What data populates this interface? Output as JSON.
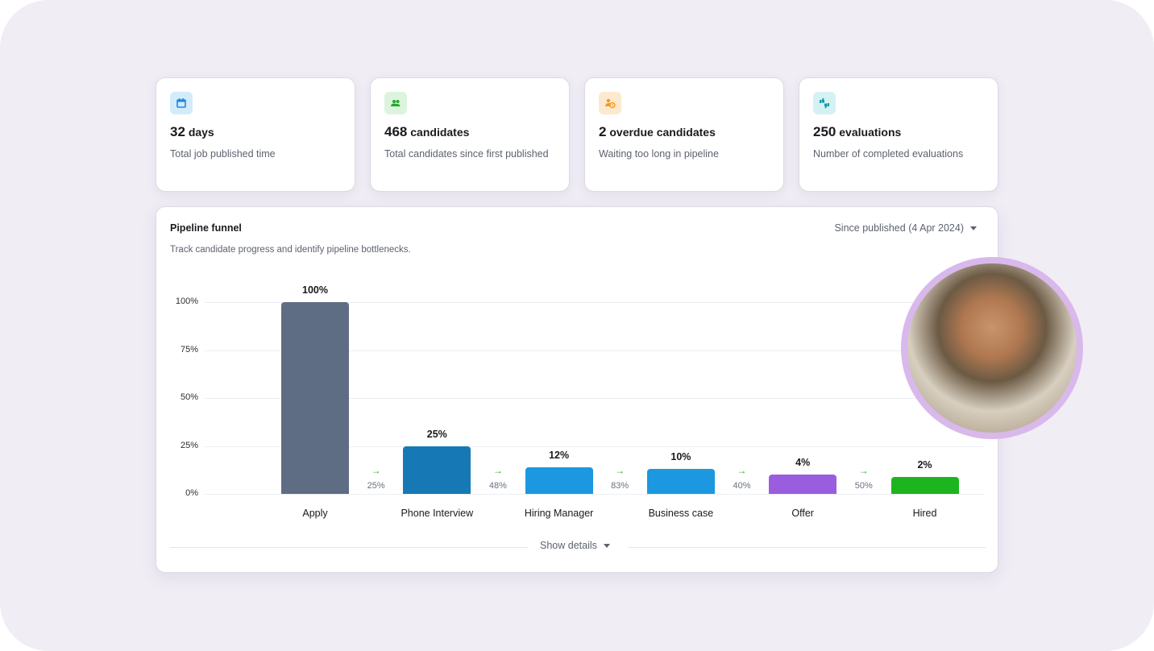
{
  "stats": [
    {
      "number": "32",
      "unit": "days",
      "description": "Total job published time",
      "icon": "calendar-icon",
      "icon_color": "#1e88e5",
      "icon_bg": "#d3ebfb"
    },
    {
      "number": "468",
      "unit": "candidates",
      "description": "Total candidates since first published",
      "icon": "people-icon",
      "icon_color": "#1fa82a",
      "icon_bg": "#dcf4dd"
    },
    {
      "number": "2",
      "unit": "overdue candidates",
      "description": "Waiting too long in pipeline",
      "icon": "user-clock-icon",
      "icon_color": "#f59a1b",
      "icon_bg": "#fde9cf"
    },
    {
      "number": "250",
      "unit": "evaluations",
      "description": "Number of completed evaluations",
      "icon": "thumbs-icon",
      "icon_color": "#0f9aa8",
      "icon_bg": "#d6f1f4"
    }
  ],
  "funnel": {
    "title": "Pipeline funnel",
    "subtitle": "Track candidate progress and identify pipeline bottlenecks.",
    "range_label": "Since published",
    "range_date": "(4 Apr 2024)",
    "show_details": "Show details"
  },
  "chart_data": {
    "type": "bar",
    "categories": [
      "Apply",
      "Phone Interview",
      "Hiring Manager",
      "Business case",
      "Offer",
      "Hired"
    ],
    "values": [
      100,
      25,
      12,
      10,
      4,
      2
    ],
    "value_labels": [
      "100%",
      "25%",
      "12%",
      "10%",
      "4%",
      "2%"
    ],
    "colors": [
      "#5f6d84",
      "#1679b5",
      "#1b98e0",
      "#1b98e0",
      "#9a5ddf",
      "#1db51f"
    ],
    "conversion_rates": [
      "25%",
      "48%",
      "83%",
      "40%",
      "50%"
    ],
    "yticks": [
      "100%",
      "75%",
      "50%",
      "25%",
      "0%"
    ],
    "ylim": [
      0,
      100
    ],
    "grid": true
  },
  "profile_photo": {
    "border_color": "#d9b8ec"
  }
}
